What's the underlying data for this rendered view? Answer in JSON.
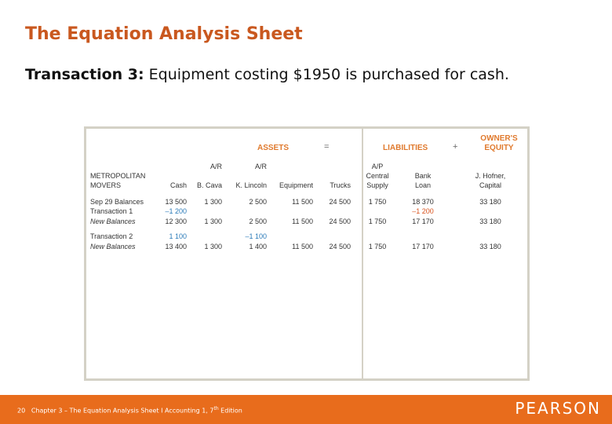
{
  "slide": {
    "title": "The Equation Analysis Sheet",
    "subtitle_bold": "Transaction 3:",
    "subtitle_rest": " Equipment costing $1950 is purchased for cash."
  },
  "sheet": {
    "headers": {
      "assets": "ASSETS",
      "equals": "=",
      "liabilities": "LIABILITIES",
      "plus": "+",
      "equity_line1": "OWNER'S",
      "equity_line2": "EQUITY"
    },
    "company_line1": "METROPOLITAN",
    "company_line2": "MOVERS",
    "columns": [
      {
        "line1": "",
        "line2": "Cash"
      },
      {
        "line1": "A/R",
        "line2": "B. Cava"
      },
      {
        "line1": "A/R",
        "line2": "K. Lincoln"
      },
      {
        "line1": "",
        "line2": "Equipment"
      },
      {
        "line1": "",
        "line2": "Trucks"
      },
      {
        "line1": "A/P",
        "line1b": "Central",
        "line2": "Supply"
      },
      {
        "line1": "",
        "line1b": "Bank",
        "line2": "Loan"
      },
      {
        "line1": "",
        "line1b": "J. Hofner,",
        "line2": "Capital"
      }
    ],
    "rows": [
      {
        "label": "Sep 29 Balances",
        "values": [
          "13 500",
          "1 300",
          "2 500",
          "11 500",
          "24 500",
          "1 750",
          "18 370",
          "33 180"
        ]
      },
      {
        "label": "Transaction 1",
        "values": [
          "–1 200",
          "",
          "",
          "",
          "",
          "",
          "–1 200",
          ""
        ]
      },
      {
        "label": "New Balances",
        "values": [
          "12 300",
          "1 300",
          "2 500",
          "11 500",
          "24 500",
          "1 750",
          "17 170",
          "33 180"
        ]
      },
      {
        "label": "Transaction 2",
        "values": [
          "1 100",
          "",
          "–1 100",
          "",
          "",
          "",
          "",
          ""
        ]
      },
      {
        "label": "New Balances",
        "values": [
          "13 400",
          "1 300",
          "1 400",
          "11 500",
          "24 500",
          "1 750",
          "17 170",
          "33 180"
        ]
      }
    ]
  },
  "footer": {
    "page": "20",
    "chapter_prefix": "Chapter 3 – The Equation Analysis Sheet I Accounting 1, 7",
    "superscript": "th",
    "chapter_suffix": " Edition",
    "logo": "PEARSON"
  },
  "colors": {
    "title": "#c9581f",
    "header": "#e07a2e",
    "blue_value": "#2a7ab8",
    "red_value": "#d9531e",
    "footer_bar": "#e86c1c"
  }
}
